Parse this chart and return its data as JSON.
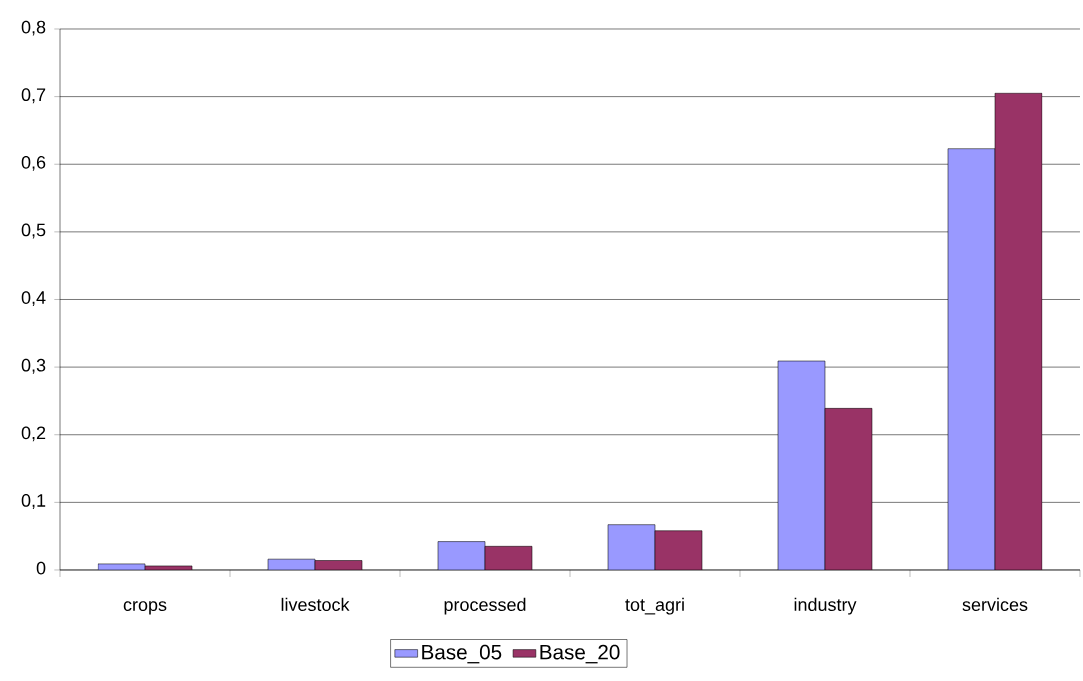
{
  "chart_data": {
    "type": "bar",
    "categories": [
      "crops",
      "livestock",
      "processed",
      "tot_agri",
      "industry",
      "services"
    ],
    "series": [
      {
        "name": "Base_05",
        "color": "#9999ff",
        "values": [
          0.009,
          0.016,
          0.042,
          0.067,
          0.309,
          0.623
        ]
      },
      {
        "name": "Base_20",
        "color": "#993366",
        "values": [
          0.006,
          0.014,
          0.035,
          0.058,
          0.239,
          0.705
        ]
      }
    ],
    "ylim": [
      0,
      0.8
    ],
    "yticks": [
      0,
      {
        "value": 0.1,
        "label": "0,1"
      },
      {
        "value": 0.2,
        "label": "0,2"
      },
      {
        "value": 0.3,
        "label": "0,3"
      },
      {
        "value": 0.4,
        "label": "0,4"
      },
      {
        "value": 0.5,
        "label": "0,5"
      },
      {
        "value": 0.6,
        "label": "0,6"
      },
      {
        "value": 0.7,
        "label": "0,7"
      },
      {
        "value": 0.8,
        "label": "0,8"
      }
    ],
    "grid": "y",
    "legend": "bottom"
  }
}
